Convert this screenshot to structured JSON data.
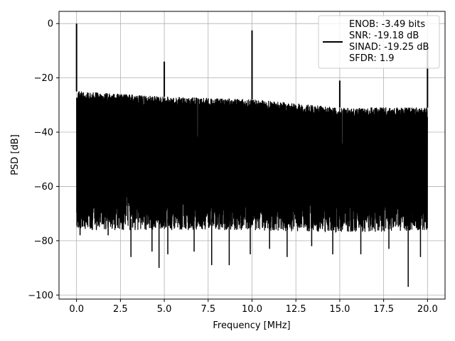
{
  "chart_data": {
    "type": "line",
    "title": "",
    "xlabel": "Frequency [MHz]",
    "ylabel": "PSD [dB]",
    "xlim": [
      -1.0,
      21.0
    ],
    "ylim": [
      -101.5,
      4.5
    ],
    "x_ticks": [
      0.0,
      2.5,
      5.0,
      7.5,
      10.0,
      12.5,
      15.0,
      17.5,
      20.0
    ],
    "x_tick_labels": [
      "0.0",
      "2.5",
      "5.0",
      "7.5",
      "10.0",
      "12.5",
      "15.0",
      "17.5",
      "20.0"
    ],
    "y_ticks": [
      0,
      -20,
      -40,
      -60,
      -80,
      -100
    ],
    "y_tick_labels": [
      "0",
      "−20",
      "−40",
      "−60",
      "−80",
      "−100"
    ],
    "grid": true,
    "legend_position": "top-right",
    "series": [
      {
        "name": "ENOB: -3.49 bits\nSNR: -19.18 dB\nSINAD: -19.25 dB\nSFDR: 1.9",
        "color": "#000000",
        "x_range": [
          0.0,
          20.0
        ],
        "noise_band": [
          {
            "x": 0.0,
            "top": -25,
            "bottom": -72
          },
          {
            "x": 5.0,
            "top": -27,
            "bottom": -72
          },
          {
            "x": 10.0,
            "top": -28,
            "bottom": -72
          },
          {
            "x": 15.0,
            "top": -31,
            "bottom": -73
          },
          {
            "x": 20.0,
            "top": -31,
            "bottom": -72
          }
        ],
        "peaks": [
          {
            "x": 0.0,
            "y": 0
          },
          {
            "x": 5.0,
            "y": -14
          },
          {
            "x": 10.0,
            "y": -2.5
          },
          {
            "x": 15.0,
            "y": -21
          },
          {
            "x": 20.0,
            "y": -7.5
          }
        ],
        "dips": [
          {
            "x": 0.2,
            "y": -78
          },
          {
            "x": 0.9,
            "y": -76
          },
          {
            "x": 1.8,
            "y": -78
          },
          {
            "x": 3.1,
            "y": -86
          },
          {
            "x": 4.3,
            "y": -84
          },
          {
            "x": 4.7,
            "y": -90
          },
          {
            "x": 5.2,
            "y": -85
          },
          {
            "x": 6.7,
            "y": -84
          },
          {
            "x": 7.7,
            "y": -89
          },
          {
            "x": 8.7,
            "y": -89
          },
          {
            "x": 9.9,
            "y": -85
          },
          {
            "x": 11.0,
            "y": -83
          },
          {
            "x": 12.0,
            "y": -86
          },
          {
            "x": 13.4,
            "y": -82
          },
          {
            "x": 14.6,
            "y": -85
          },
          {
            "x": 16.2,
            "y": -85
          },
          {
            "x": 17.8,
            "y": -83
          },
          {
            "x": 18.9,
            "y": -97
          },
          {
            "x": 19.6,
            "y": -86
          }
        ]
      }
    ]
  }
}
